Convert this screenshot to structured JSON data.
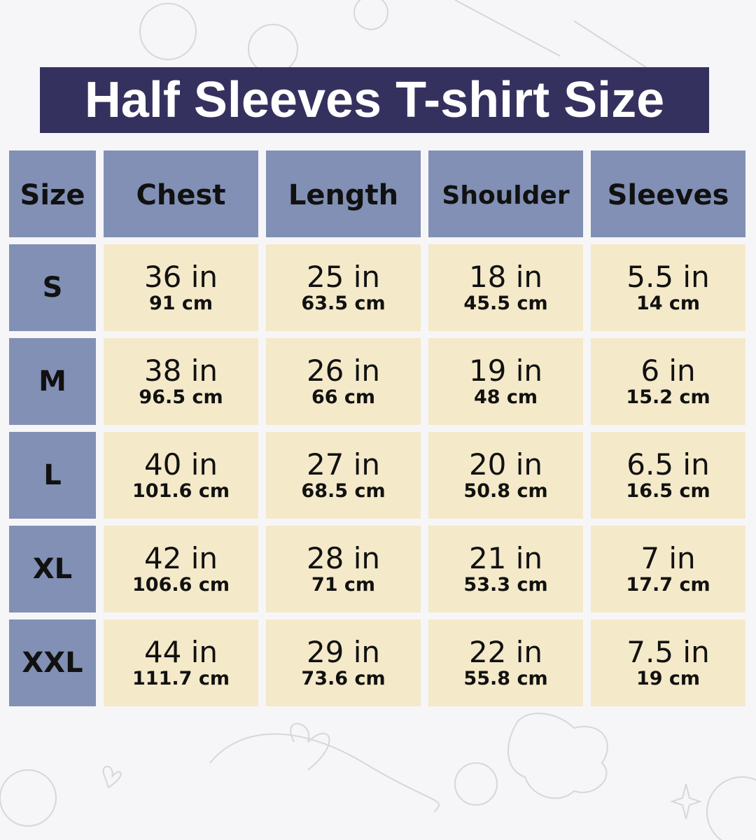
{
  "title": "Half Sleeves T-shirt Size",
  "colors": {
    "title_bg": "#35315f",
    "header_bg": "#8190b4",
    "cell_bg": "#f4e9c9",
    "background": "#f6f6f8"
  },
  "headers": [
    "Size",
    "Chest",
    "Length",
    "Shoulder",
    "Sleeves"
  ],
  "rows": [
    {
      "size": "S",
      "values": [
        {
          "in": "36 in",
          "cm": "91 cm"
        },
        {
          "in": "25 in",
          "cm": "63.5 cm"
        },
        {
          "in": "18 in",
          "cm": "45.5 cm"
        },
        {
          "in": "5.5 in",
          "cm": "14 cm"
        }
      ]
    },
    {
      "size": "M",
      "values": [
        {
          "in": "38 in",
          "cm": "96.5 cm"
        },
        {
          "in": "26 in",
          "cm": "66 cm"
        },
        {
          "in": "19 in",
          "cm": "48 cm"
        },
        {
          "in": "6 in",
          "cm": "15.2 cm"
        }
      ]
    },
    {
      "size": "L",
      "values": [
        {
          "in": "40 in",
          "cm": "101.6 cm"
        },
        {
          "in": "27 in",
          "cm": "68.5 cm"
        },
        {
          "in": "20 in",
          "cm": "50.8 cm"
        },
        {
          "in": "6.5 in",
          "cm": "16.5 cm"
        }
      ]
    },
    {
      "size": "XL",
      "values": [
        {
          "in": "42 in",
          "cm": "106.6 cm"
        },
        {
          "in": "28 in",
          "cm": "71 cm"
        },
        {
          "in": "21 in",
          "cm": "53.3 cm"
        },
        {
          "in": "7 in",
          "cm": "17.7 cm"
        }
      ]
    },
    {
      "size": "XXL",
      "values": [
        {
          "in": "44 in",
          "cm": "111.7 cm"
        },
        {
          "in": "29 in",
          "cm": "73.6 cm"
        },
        {
          "in": "22 in",
          "cm": "55.8 cm"
        },
        {
          "in": "7.5 in",
          "cm": "19 cm"
        }
      ]
    }
  ]
}
